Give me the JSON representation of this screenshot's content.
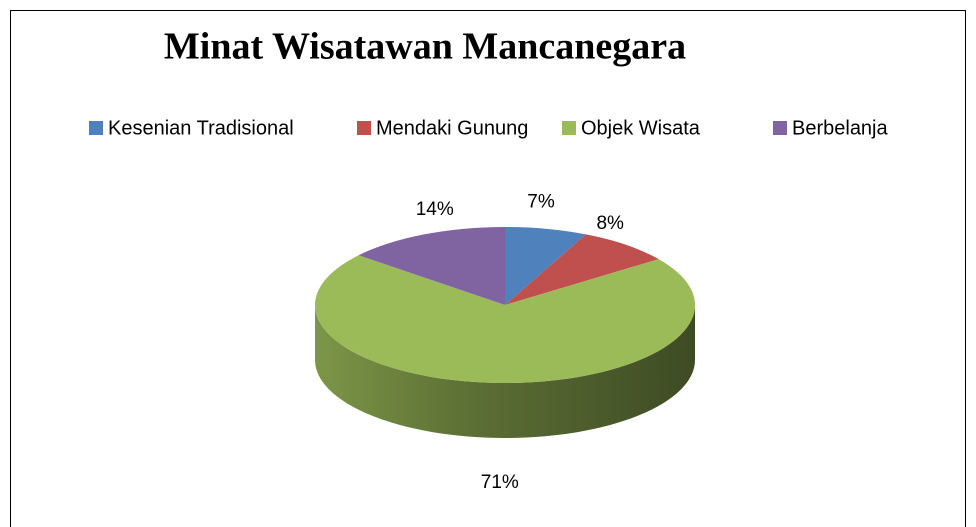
{
  "chart_data": {
    "type": "pie",
    "title": "Minat Wisatawan Mancanegara",
    "categories": [
      "Kesenian Tradisional",
      "Mendaki Gunung",
      "Objek Wisata",
      "Berbelanja"
    ],
    "series": [
      {
        "values": [
          7,
          8,
          71,
          14
        ],
        "value_labels": [
          "7%",
          "8%",
          "71%",
          "14%"
        ],
        "colors": [
          "#4f81bd",
          "#c0504d",
          "#9bbb59",
          "#8064a2"
        ]
      }
    ],
    "legend": "top"
  }
}
